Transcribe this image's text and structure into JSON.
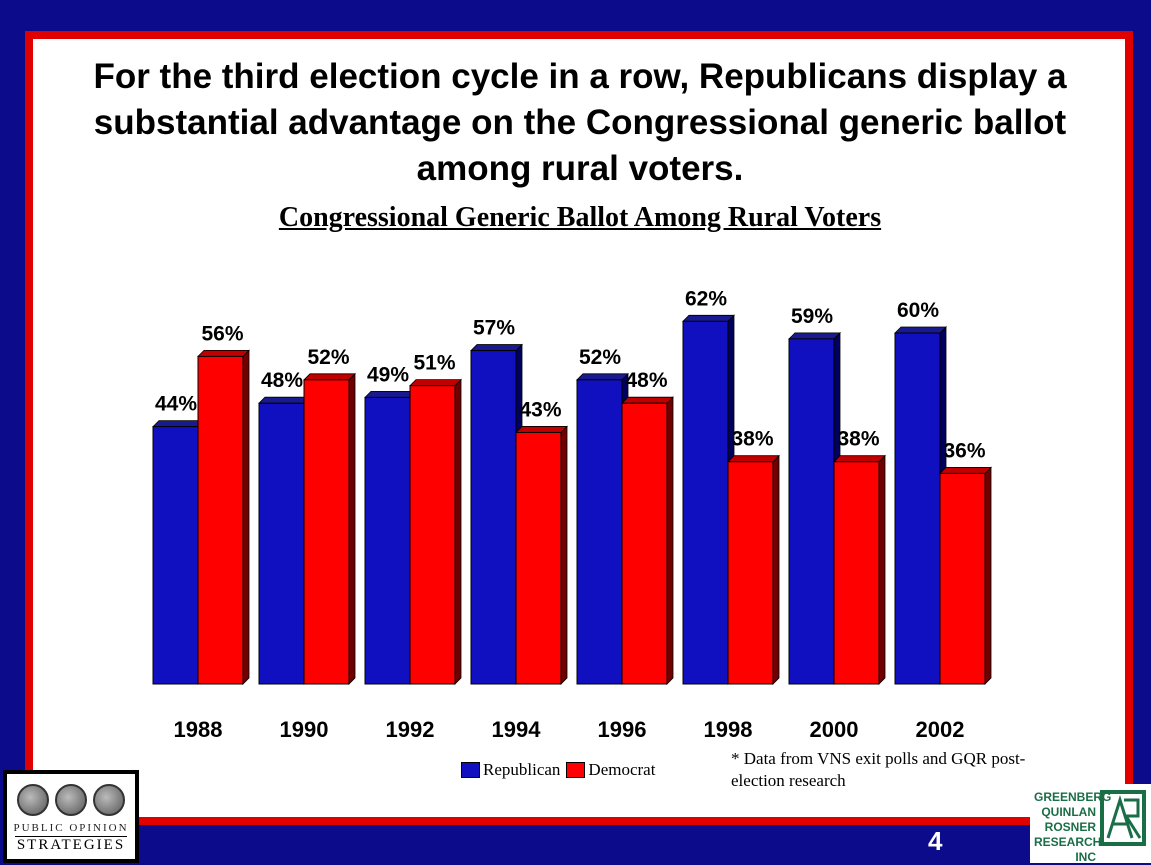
{
  "slide": {
    "headline": "For the third election cycle in a row, Republicans display a substantial advantage on the Congressional generic ballot among rural voters.",
    "page_number": "4",
    "footnote": "* Data from VNS exit polls and GQR post-election research",
    "logo_left": {
      "line1": "PUBLIC OPINION",
      "line2": "STRATEGIES"
    },
    "logo_right": {
      "lines": [
        "GREENBERG",
        "QUINLAN",
        "ROSNER",
        "RESEARCH INC"
      ]
    }
  },
  "colors": {
    "republican": "#1010c0",
    "democrat": "#ff0000",
    "frame": "#e00000",
    "background": "#0b0b8c"
  },
  "chart_data": {
    "type": "bar",
    "title": "Congressional Generic Ballot Among Rural Voters",
    "categories": [
      "1988",
      "1990",
      "1992",
      "1994",
      "1996",
      "1998",
      "2000",
      "2002"
    ],
    "series": [
      {
        "name": "Republican",
        "values": [
          44,
          48,
          49,
          57,
          52,
          62,
          59,
          60
        ],
        "labels": [
          "44%",
          "48%",
          "49%",
          "57%",
          "52%",
          "62%",
          "59%",
          "60%"
        ]
      },
      {
        "name": "Democrat",
        "values": [
          56,
          52,
          51,
          43,
          48,
          38,
          38,
          36
        ],
        "labels": [
          "56%",
          "52%",
          "51%",
          "43%",
          "48%",
          "38%",
          "38%",
          "36%"
        ]
      }
    ],
    "ylim": [
      0,
      70
    ],
    "legend": "bottom-center",
    "grid": false,
    "style": "3d-columns"
  }
}
